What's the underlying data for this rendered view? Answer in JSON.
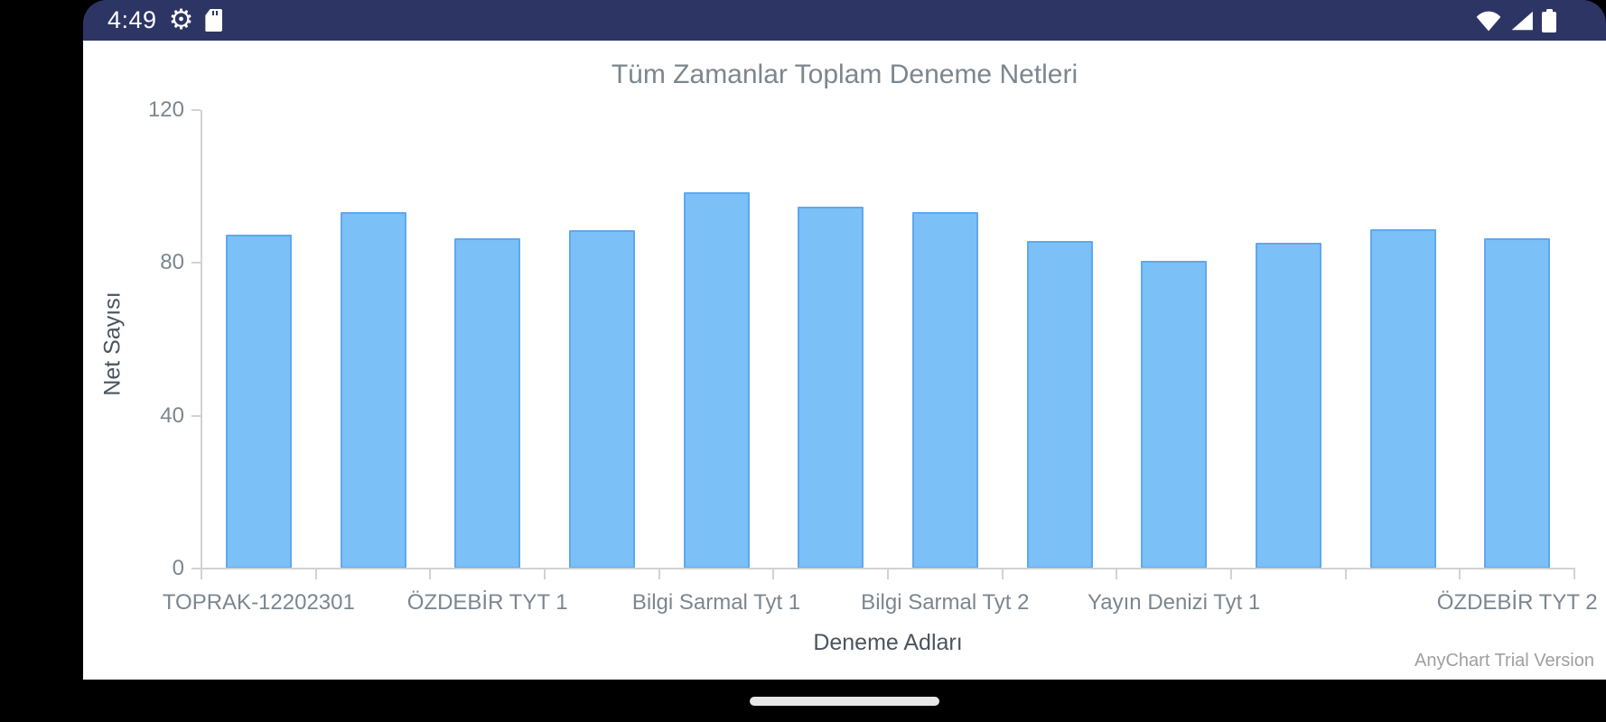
{
  "status_bar": {
    "time": "4:49",
    "bg_color": "#2d3565",
    "left_icons": [
      "settings-gear",
      "sd-card"
    ],
    "right_icons": [
      "wifi",
      "cellular-signal",
      "battery"
    ]
  },
  "chart_data": {
    "type": "bar",
    "title": "Tüm Zamanlar Toplam Deneme Netleri",
    "xlabel": "Deneme Adları",
    "ylabel": "Net Sayısı",
    "ylim": [
      0,
      120
    ],
    "yticks": [
      0,
      40,
      80,
      120
    ],
    "grid": false,
    "legend": false,
    "bar_count": 12,
    "values": [
      87.5,
      93.25,
      86.5,
      88.5,
      98.5,
      94.75,
      93.25,
      85.75,
      80.5,
      85.25,
      88.75,
      86.5
    ],
    "visible_x_labels": [
      {
        "text": "TOPRAK-12202301",
        "bar_index": 0
      },
      {
        "text": "ÖZDEBİR TYT 1",
        "bar_index": 2
      },
      {
        "text": "Bilgi Sarmal Tyt 1",
        "bar_index": 4
      },
      {
        "text": "Bilgi Sarmal Tyt 2",
        "bar_index": 6
      },
      {
        "text": "Yayın Denizi Tyt 1",
        "bar_index": 8
      },
      {
        "text": "ÖZDEBİR TYT 2",
        "bar_index": 11
      }
    ],
    "bar_fill": "#7bc0f7",
    "bar_stroke": "#5fa8ef",
    "watermark": "AnyChart Trial Version"
  },
  "nav_bar": {
    "home_indicator": true
  }
}
